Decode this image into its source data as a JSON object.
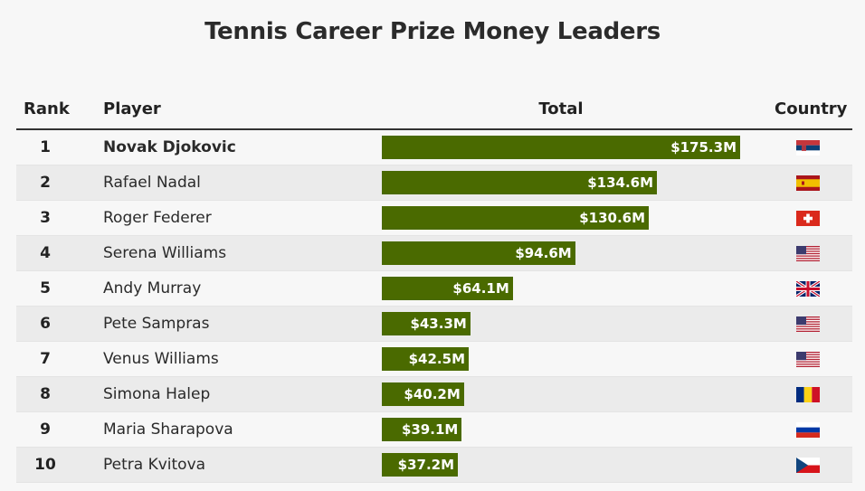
{
  "title": "Tennis Career Prize Money Leaders",
  "header": {
    "rank": "Rank",
    "player": "Player",
    "total": "Total",
    "country": "Country"
  },
  "rows": [
    {
      "rank": "1",
      "player": "Novak Djokovic",
      "total_label": "$175.3M",
      "country": "serbia-flag"
    },
    {
      "rank": "2",
      "player": "Rafael Nadal",
      "total_label": "$134.6M",
      "country": "spain-flag"
    },
    {
      "rank": "3",
      "player": "Roger Federer",
      "total_label": "$130.6M",
      "country": "switzerland-flag"
    },
    {
      "rank": "4",
      "player": "Serena Williams",
      "total_label": "$94.6M",
      "country": "usa-flag"
    },
    {
      "rank": "5",
      "player": "Andy Murray",
      "total_label": "$64.1M",
      "country": "uk-flag"
    },
    {
      "rank": "6",
      "player": "Pete Sampras",
      "total_label": "$43.3M",
      "country": "usa-flag"
    },
    {
      "rank": "7",
      "player": "Venus Williams",
      "total_label": "$42.5M",
      "country": "usa-flag"
    },
    {
      "rank": "8",
      "player": "Simona Halep",
      "total_label": "$40.2M",
      "country": "romania-flag"
    },
    {
      "rank": "9",
      "player": "Maria Sharapova",
      "total_label": "$39.1M",
      "country": "russia-flag"
    },
    {
      "rank": "10",
      "player": "Petra Kvitova",
      "total_label": "$37.2M",
      "country": "czech-flag"
    }
  ],
  "colors": {
    "bar": "#4a6a00",
    "alt_row": "#ebebeb"
  },
  "chart_data": {
    "type": "bar",
    "categories": [
      "Novak Djokovic",
      "Rafael Nadal",
      "Roger Federer",
      "Serena Williams",
      "Andy Murray",
      "Pete Sampras",
      "Venus Williams",
      "Simona Halep",
      "Maria Sharapova",
      "Petra Kvitova"
    ],
    "values": [
      175.3,
      134.6,
      130.6,
      94.6,
      64.1,
      43.3,
      42.5,
      40.2,
      39.1,
      37.2
    ],
    "title": "Tennis Career Prize Money Leaders",
    "xlabel": "Total",
    "ylabel": "",
    "orientation": "horizontal",
    "ylim": [
      0,
      175.3
    ]
  }
}
